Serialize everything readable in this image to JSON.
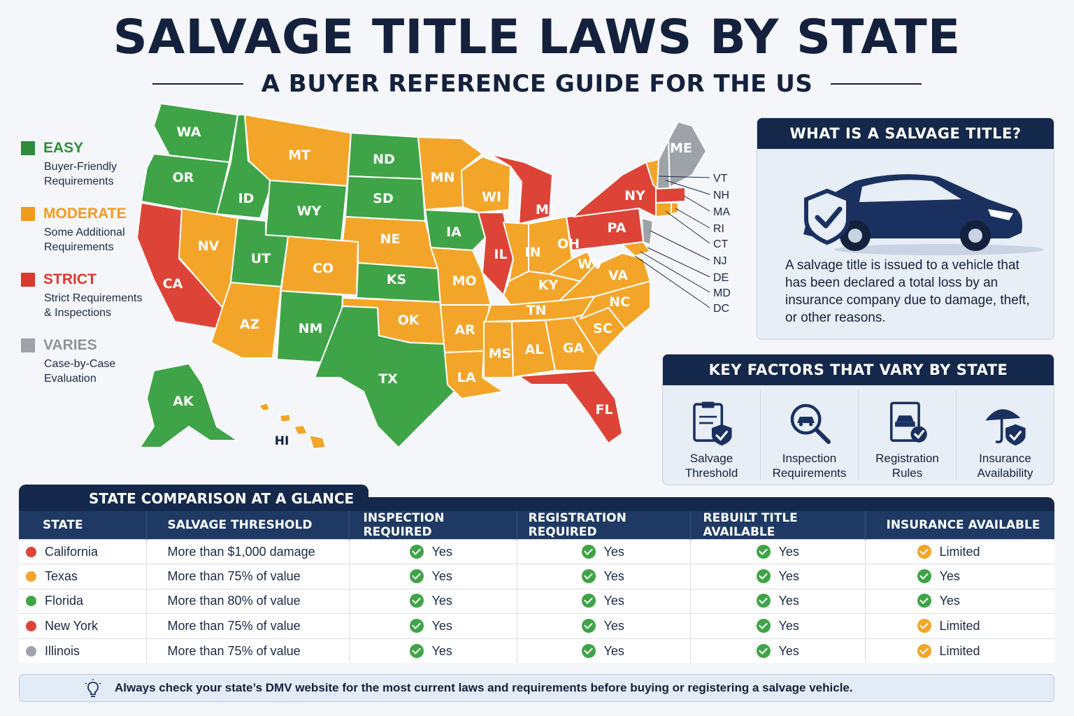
{
  "header": {
    "title": "SALVAGE TITLE LAWS BY STATE",
    "subtitle": "A BUYER REFERENCE GUIDE FOR THE US"
  },
  "colors": {
    "easy": "#3fa447",
    "moderate": "#f3a52a",
    "strict": "#dd4437",
    "varies": "#9ea3aa",
    "navy": "#14284b"
  },
  "legend": [
    {
      "label": "EASY",
      "desc_1": "Buyer-Friendly",
      "desc_2": "Requirements",
      "color": "#2e8b3a"
    },
    {
      "label": "MODERATE",
      "desc_1": "Some Additional",
      "desc_2": "Requirements",
      "color": "#f09b1c"
    },
    {
      "label": "STRICT",
      "desc_1": "Strict Requirements",
      "desc_2": "& Inspections",
      "color": "#d93a2f"
    },
    {
      "label": "VARIES",
      "desc_1": "Case-by-Case",
      "desc_2": "Evaluation",
      "color": "#9ea3aa"
    }
  ],
  "map": {
    "states": {
      "WA": "WA",
      "OR": "OR",
      "CA": "CA",
      "ID": "ID",
      "NV": "NV",
      "MT": "MT",
      "WY": "WY",
      "UT": "UT",
      "AZ": "AZ",
      "CO": "CO",
      "NM": "NM",
      "ND": "ND",
      "SD": "SD",
      "NE": "NE",
      "KS": "KS",
      "OK": "OK",
      "TX": "TX",
      "MN": "MN",
      "IA": "IA",
      "MO": "MO",
      "AR": "AR",
      "LA": "LA",
      "WI": "WI",
      "IL": "IL",
      "MI": "MI",
      "IN": "IN",
      "OH": "OH",
      "KY": "KY",
      "TN": "TN",
      "MS": "MS",
      "AL": "AL",
      "GA": "GA",
      "FL": "FL",
      "SC": "SC",
      "NC": "NC",
      "VA": "VA",
      "WV": "WV",
      "PA": "PA",
      "NY": "NY",
      "ME": "ME",
      "AK": "AK",
      "HI": "HI"
    },
    "callouts": [
      "VT",
      "NH",
      "MA",
      "RI",
      "CT",
      "NJ",
      "DE",
      "MD",
      "DC"
    ]
  },
  "what_panel": {
    "title": "WHAT IS A SALVAGE TITLE?",
    "text": "A salvage title is issued to a vehicle that has been declared a total loss by an insurance company due to damage, theft, or other reasons.",
    "icon": "car-shield-icon"
  },
  "factors_panel": {
    "title": "KEY FACTORS THAT VARY BY STATE",
    "items": [
      {
        "line1": "Salvage",
        "line2": "Threshold",
        "icon": "clipboard-shield-icon"
      },
      {
        "line1": "Inspection",
        "line2": "Requirements",
        "icon": "magnifier-car-icon"
      },
      {
        "line1": "Registration",
        "line2": "Rules",
        "icon": "document-car-check-icon"
      },
      {
        "line1": "Insurance",
        "line2": "Availability",
        "icon": "umbrella-shield-icon"
      }
    ]
  },
  "table": {
    "title": "STATE COMPARISON AT A GLANCE",
    "headers": [
      "STATE",
      "SALVAGE THRESHOLD",
      "INSPECTION REQUIRED",
      "REGISTRATION REQUIRED",
      "REBUILT TITLE AVAILABLE",
      "INSURANCE AVAILABLE"
    ],
    "rows": [
      {
        "state": "California",
        "dot": "#dd4437",
        "threshold": "More than $1,000 damage",
        "inspection": "Yes",
        "registration": "Yes",
        "rebuilt": "Yes",
        "insurance": "Limited",
        "ins_color": "#f3a52a"
      },
      {
        "state": "Texas",
        "dot": "#f3a52a",
        "threshold": "More than 75% of value",
        "inspection": "Yes",
        "registration": "Yes",
        "rebuilt": "Yes",
        "insurance": "Yes",
        "ins_color": "#3fa447"
      },
      {
        "state": "Florida",
        "dot": "#3fa447",
        "threshold": "More than 80% of value",
        "inspection": "Yes",
        "registration": "Yes",
        "rebuilt": "Yes",
        "insurance": "Yes",
        "ins_color": "#3fa447"
      },
      {
        "state": "New York",
        "dot": "#dd4437",
        "threshold": "More than 75% of value",
        "inspection": "Yes",
        "registration": "Yes",
        "rebuilt": "Yes",
        "insurance": "Limited",
        "ins_color": "#f3a52a"
      },
      {
        "state": "Illinois",
        "dot": "#9ea3aa",
        "threshold": "More than 75% of value",
        "inspection": "Yes",
        "registration": "Yes",
        "rebuilt": "Yes",
        "insurance": "Limited",
        "ins_color": "#f3a52a"
      }
    ]
  },
  "footer": {
    "text": "Always check your state’s DMV website for the most current laws and requirements before buying or registering a salvage vehicle.",
    "icon": "lightbulb-icon"
  }
}
